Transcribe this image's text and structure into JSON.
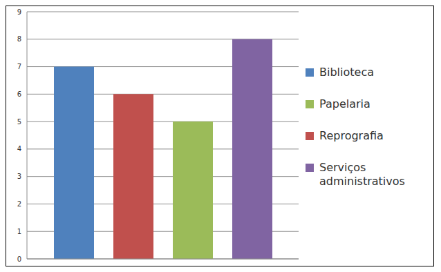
{
  "chart_data": {
    "type": "bar",
    "categories": [
      null
    ],
    "series": [
      {
        "name": "Biblioteca",
        "color": "#4f81bd",
        "values": [
          7
        ]
      },
      {
        "name": "Reprografia",
        "color": "#c0504d",
        "values": [
          6
        ]
      },
      {
        "name": "Papelaria",
        "color": "#9bbb59",
        "values": [
          5
        ]
      },
      {
        "name": "Serviços administrativos",
        "color": "#8064a2",
        "values": [
          8
        ]
      }
    ],
    "ylim": [
      0,
      9
    ],
    "yticks": [
      0,
      1,
      2,
      3,
      4,
      5,
      6,
      7,
      8,
      9
    ],
    "grid": true,
    "legend": "right"
  }
}
